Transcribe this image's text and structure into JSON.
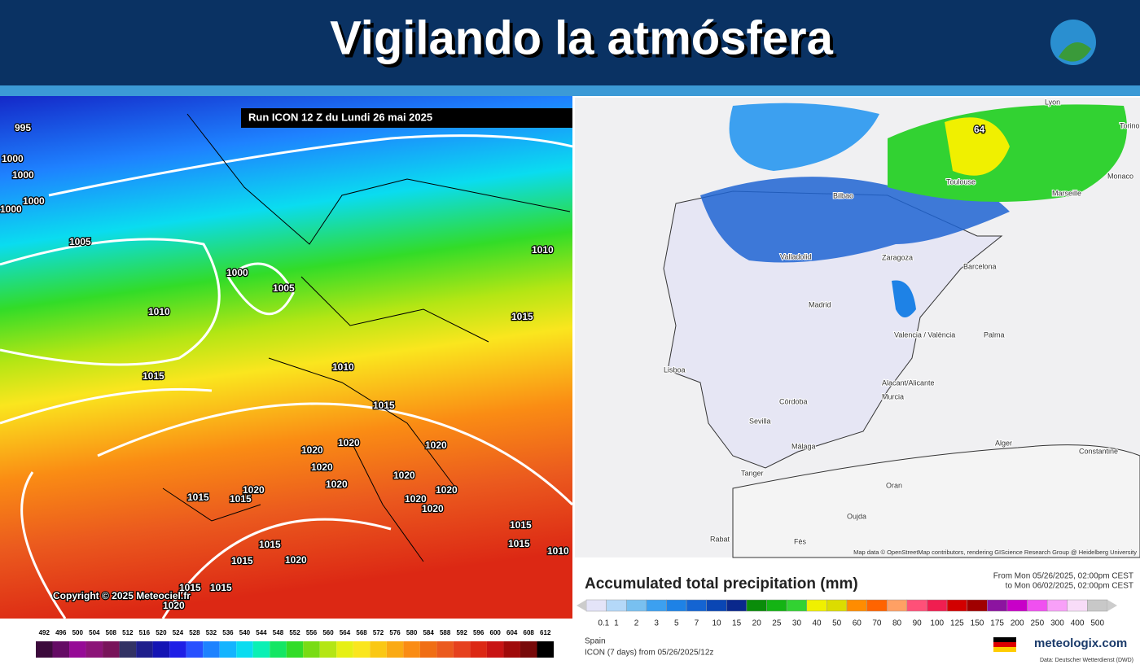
{
  "header": {
    "title": "Vigilando la atmósfera"
  },
  "left_map": {
    "run_label": "Run ICON 12 Z du Lundi 26 mai 2025",
    "copyright": "Copyright © 2025 Meteociel.fr",
    "isobar_labels": [
      "995",
      "1000",
      "1000",
      "1000",
      "1000",
      "1005",
      "1000",
      "1005",
      "1010",
      "1010",
      "1010",
      "1015",
      "1015",
      "1015",
      "1020",
      "1020",
      "1020",
      "1020",
      "1020",
      "1015",
      "1015",
      "1020",
      "1020",
      "1020",
      "1020",
      "1015",
      "1015",
      "1020",
      "1015",
      "1020",
      "1015",
      "1015",
      "1020",
      "1015",
      "1010"
    ],
    "scale": {
      "labels": [
        492,
        496,
        500,
        504,
        508,
        512,
        516,
        520,
        524,
        528,
        532,
        536,
        540,
        544,
        548,
        552,
        556,
        560,
        564,
        568,
        572,
        576,
        580,
        584,
        588,
        592,
        596,
        600,
        604,
        608,
        612
      ],
      "colors": [
        "#3c0a3c",
        "#640a64",
        "#960a96",
        "#8c1478",
        "#78145a",
        "#323264",
        "#1e1e8c",
        "#1414b4",
        "#1e1ee6",
        "#2850ff",
        "#1e82ff",
        "#14b4ff",
        "#0adcf0",
        "#0af0b4",
        "#14e664",
        "#32dc28",
        "#78dc14",
        "#b4e614",
        "#e6f014",
        "#fae61e",
        "#fac814",
        "#faaa14",
        "#fa8c14",
        "#f06e14",
        "#eb5a1e",
        "#e6411e",
        "#dc2814",
        "#c81414",
        "#a00a0a",
        "#780a0a",
        "#000000"
      ]
    }
  },
  "right_map": {
    "peak_label": "64",
    "cities": [
      "Lyon",
      "Torino",
      "Bilbao",
      "Toulouse",
      "Monaco",
      "Marseille",
      "Valladolid",
      "Zaragoza",
      "Barcelona",
      "Madrid",
      "Valencia / València",
      "Palma",
      "Lisboa",
      "Alacant/Alicante",
      "Murcia",
      "Córdoba",
      "Sevilla",
      "Málaga",
      "Alger",
      "Constantine",
      "Oran",
      "Tanger",
      "Oujda",
      "Rabat",
      "Fès"
    ],
    "attribution": "Map data © OpenStreetMap contributors, rendering GIScience Research Group @ Heidelberg University",
    "legend": {
      "title": "Accumulated total precipitation (mm)",
      "from": "From Mon 05/26/2025, 02:00pm CEST",
      "to": "to Mon 06/02/2025, 02:00pm CEST",
      "labels": [
        0.1,
        1,
        2,
        3,
        5,
        7,
        10,
        15,
        20,
        25,
        30,
        40,
        50,
        60,
        70,
        80,
        90,
        100,
        125,
        150,
        175,
        200,
        250,
        300,
        400,
        500
      ],
      "colors": [
        "#e4e4f8",
        "#b4d8f8",
        "#78c0f0",
        "#3ca0f0",
        "#1e82e6",
        "#1464d2",
        "#0a46b4",
        "#0a288c",
        "#0a8c0a",
        "#14b414",
        "#32d232",
        "#f0f000",
        "#dcdc00",
        "#ff8c00",
        "#ff6400",
        "#ffa064",
        "#ff5078",
        "#f01e50",
        "#d20000",
        "#a00000",
        "#8c14a0",
        "#c800c8",
        "#f050f0",
        "#f8a0f8",
        "#f8dcf8",
        "#c8c8c8"
      ],
      "region": "Spain",
      "model": "ICON (7 days) from 05/26/2025/12z",
      "brand": "meteologix.com",
      "source": "Data: Deutscher Wetterdienst (DWD)"
    }
  }
}
